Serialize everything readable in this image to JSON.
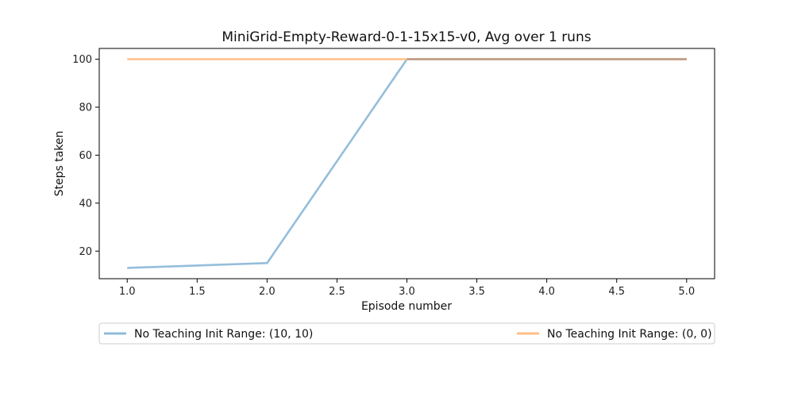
{
  "chart_data": {
    "type": "line",
    "title": "MiniGrid-Empty-Reward-0-1-15x15-v0, Avg over 1 runs",
    "xlabel": "Episode number",
    "ylabel": "Steps taken",
    "xlim": [
      0.8,
      5.2
    ],
    "ylim": [
      8.5,
      104.5
    ],
    "xticks": [
      1.0,
      1.5,
      2.0,
      2.5,
      3.0,
      3.5,
      4.0,
      4.5,
      5.0
    ],
    "xtick_labels": [
      "1.0",
      "1.5",
      "2.0",
      "2.5",
      "3.0",
      "3.5",
      "4.0",
      "4.5",
      "5.0"
    ],
    "yticks": [
      20,
      40,
      60,
      80,
      100
    ],
    "ytick_labels": [
      "20",
      "40",
      "60",
      "80",
      "100"
    ],
    "grid": false,
    "legend_position": "below",
    "series": [
      {
        "name": "No Teaching Init Range: (10, 10)",
        "color": "#8fbbd9",
        "x": [
          1,
          2,
          3,
          4,
          5
        ],
        "y": [
          13,
          15,
          100,
          100,
          100
        ]
      },
      {
        "name": "No Teaching Init Range: (0, 0)",
        "color": "#ffbf86",
        "x": [
          1,
          2,
          3,
          4,
          5
        ],
        "y": [
          100,
          100,
          100,
          100,
          100
        ]
      }
    ]
  }
}
